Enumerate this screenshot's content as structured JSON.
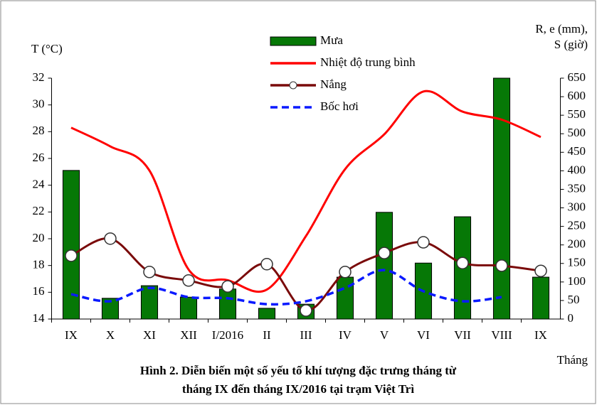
{
  "chart_data": {
    "type": "bar-line",
    "ylabel": "T (°C)",
    "y2label": [
      "R, e (mm),",
      "S (giờ)"
    ],
    "xlabel": "Tháng",
    "caption": [
      "Hình 2. Diễn biến một số yếu tố khí tượng đặc trưng tháng từ",
      "tháng IX đến tháng IX/2016 tại trạm Việt Trì"
    ],
    "categories": [
      "IX",
      "X",
      "XI",
      "XII",
      "I/2016",
      "II",
      "III",
      "IV",
      "V",
      "VI",
      "VII",
      "VIII",
      "IX"
    ],
    "ylim": [
      14,
      32
    ],
    "yticks": [
      14,
      16,
      18,
      20,
      22,
      24,
      26,
      28,
      30,
      32
    ],
    "y2lim": [
      0,
      650
    ],
    "y2ticks": [
      0,
      50,
      100,
      150,
      200,
      250,
      300,
      350,
      400,
      450,
      500,
      550,
      600,
      650
    ],
    "series": [
      {
        "name": "Mưa",
        "kind": "bar",
        "axis": "y2",
        "color": "#067806",
        "values": [
          401,
          56,
          90,
          59,
          81,
          29,
          40,
          113,
          288,
          151,
          276,
          650,
          113
        ]
      },
      {
        "name": "Nhiệt độ trung bình",
        "kind": "line",
        "axis": "y",
        "color": "#ff0000",
        "values": [
          28.3,
          26.9,
          25.1,
          17.7,
          16.9,
          16.2,
          20.2,
          25.2,
          27.8,
          31.0,
          29.5,
          28.9,
          27.6
        ]
      },
      {
        "name": "Nắng",
        "kind": "marker-line",
        "axis": "y2",
        "color": "#7a0a0a",
        "values": [
          171,
          217,
          127,
          104,
          88,
          148,
          23,
          127,
          178,
          207,
          151,
          144,
          130
        ]
      },
      {
        "name": "Bốc hơi",
        "kind": "dashed",
        "axis": "y2",
        "color": "#0a1aff",
        "values": [
          67,
          48,
          84,
          59,
          56,
          40,
          48,
          84,
          132,
          75,
          48,
          59,
          null
        ]
      }
    ]
  }
}
